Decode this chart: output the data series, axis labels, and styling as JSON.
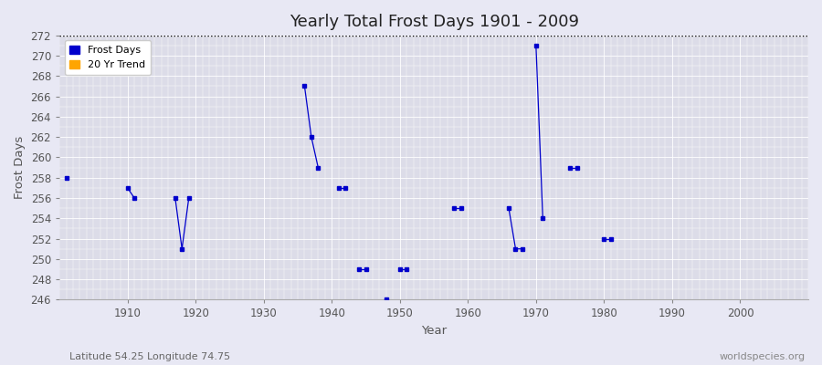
{
  "title": "Yearly Total Frost Days 1901 - 2009",
  "xlabel": "Year",
  "ylabel": "Frost Days",
  "subtitle_left": "Latitude 54.25 Longitude 74.75",
  "subtitle_right": "worldspecies.org",
  "ylim": [
    246,
    272
  ],
  "xlim": [
    1900,
    2010
  ],
  "yticks": [
    246,
    248,
    250,
    252,
    254,
    256,
    258,
    260,
    262,
    264,
    266,
    268,
    270,
    272
  ],
  "xticks": [
    1910,
    1920,
    1930,
    1940,
    1950,
    1960,
    1970,
    1980,
    1990,
    2000
  ],
  "hline_y": 272,
  "background_color": "#e8e8f4",
  "plot_bg_color": "#dcdce8",
  "grid_color": "#ffffff",
  "frost_days_color": "#0000cc",
  "trend_color": "#ffa500",
  "frost_marker": "s",
  "frost_marker_size": 3,
  "groups": [
    {
      "x": [
        1901
      ],
      "y": [
        258
      ]
    },
    {
      "x": [
        1910,
        1911
      ],
      "y": [
        257,
        256
      ]
    },
    {
      "x": [
        1917,
        1918,
        1919
      ],
      "y": [
        256,
        251,
        256
      ]
    },
    {
      "x": [
        1936,
        1937,
        1938
      ],
      "y": [
        267,
        262,
        259
      ]
    },
    {
      "x": [
        1941,
        1942
      ],
      "y": [
        257,
        257
      ]
    },
    {
      "x": [
        1944,
        1945
      ],
      "y": [
        249,
        249
      ]
    },
    {
      "x": [
        1948
      ],
      "y": [
        246
      ]
    },
    {
      "x": [
        1950,
        1951
      ],
      "y": [
        249,
        249
      ]
    },
    {
      "x": [
        1958,
        1959
      ],
      "y": [
        255,
        255
      ]
    },
    {
      "x": [
        1966,
        1967,
        1968
      ],
      "y": [
        255,
        251,
        251
      ]
    },
    {
      "x": [
        1970,
        1971
      ],
      "y": [
        271,
        254
      ]
    },
    {
      "x": [
        1975,
        1976
      ],
      "y": [
        259,
        259
      ]
    },
    {
      "x": [
        1980,
        1981
      ],
      "y": [
        252,
        252
      ]
    }
  ]
}
